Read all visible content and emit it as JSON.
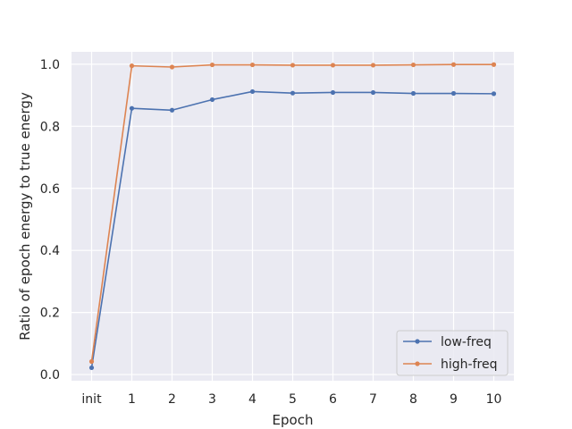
{
  "chart_data": {
    "type": "line",
    "title": "",
    "xlabel": "Epoch",
    "ylabel": "Ratio of epoch energy to true energy",
    "categories": [
      "init",
      "1",
      "2",
      "3",
      "4",
      "5",
      "6",
      "7",
      "8",
      "9",
      "10"
    ],
    "ylim": [
      -0.02,
      1.04
    ],
    "yticks": [
      "0.0",
      "0.2",
      "0.4",
      "0.6",
      "0.8",
      "1.0"
    ],
    "ytick_values": [
      0.0,
      0.2,
      0.4,
      0.6,
      0.8,
      1.0
    ],
    "grid": true,
    "legend_position": "lower-right",
    "series": [
      {
        "name": "low-freq",
        "color": "#4c72b0",
        "values": [
          0.022,
          0.858,
          0.852,
          0.886,
          0.912,
          0.907,
          0.909,
          0.909,
          0.906,
          0.906,
          0.905
        ]
      },
      {
        "name": "high-freq",
        "color": "#dd8452",
        "values": [
          0.042,
          0.995,
          0.991,
          0.998,
          0.998,
          0.997,
          0.997,
          0.997,
          0.998,
          0.999,
          0.999
        ]
      }
    ]
  }
}
